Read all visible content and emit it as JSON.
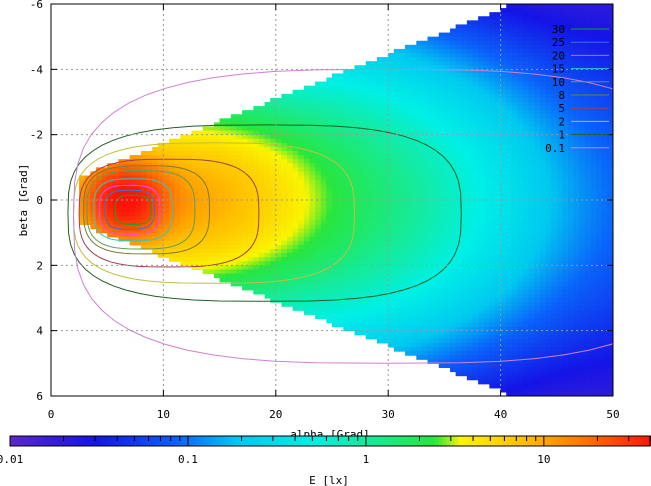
{
  "chart_data": {
    "type": "heatmap",
    "title": "",
    "xlabel": "alpha [Grad]",
    "ylabel": "beta [Grad]",
    "colorbar_label": "E [lx]",
    "xlim": [
      0,
      50
    ],
    "ylim": [
      6,
      -6
    ],
    "x_ticks": [
      "0",
      "10",
      "20",
      "30",
      "40",
      "50"
    ],
    "y_ticks": [
      "-6",
      "-4",
      "-2",
      "0",
      "2",
      "4",
      "6"
    ],
    "colorbar_ticks": [
      "0.01",
      "0.1",
      "1",
      "10"
    ],
    "colorbar_range": [
      0.01,
      40
    ],
    "colorbar_scale": "log",
    "grid": true,
    "legend_placement": "top-right",
    "contour_levels": [
      {
        "label": "30",
        "value": 30,
        "color": "#1aa31a"
      },
      {
        "label": "25",
        "value": 25,
        "color": "#3a6de0"
      },
      {
        "label": "20",
        "value": 20,
        "color": "#ff40ff"
      },
      {
        "label": "15",
        "value": 15,
        "color": "#2ec8c8"
      },
      {
        "label": "10",
        "value": 10,
        "color": "#5aa05a"
      },
      {
        "label": "8",
        "value": 8,
        "color": "#7b7b30"
      },
      {
        "label": "5",
        "value": 5,
        "color": "#a04050"
      },
      {
        "label": "2",
        "value": 2,
        "color": "#c0c040"
      },
      {
        "label": "1",
        "value": 1,
        "color": "#206020"
      },
      {
        "label": "0.1",
        "value": 0.1,
        "color": "#d080d0"
      }
    ]
  }
}
